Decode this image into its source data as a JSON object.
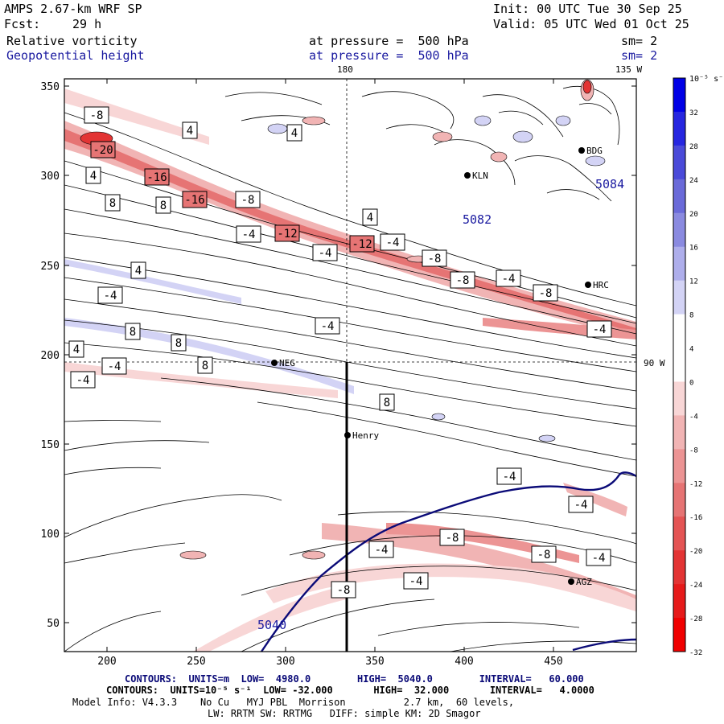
{
  "header": {
    "model": "AMPS 2.67-km WRF SP",
    "init": "Init: 00 UTC Tue 30 Sep 25",
    "fcst_label": "Fcst:",
    "fcst_value": "29 h",
    "valid": "Valid: 05 UTC Wed 01 Oct 25",
    "field1_name": "Relative vorticity",
    "field1_level": "at pressure =  500 hPa",
    "field1_sm": "sm= 2",
    "field2_name": "Geopotential height",
    "field2_level": "at pressure =  500 hPa",
    "field2_sm": "sm= 2",
    "lon_180": "180",
    "lon_135w": "135 W",
    "lon_90w": "90 W"
  },
  "axes": {
    "x_ticks": [
      "200",
      "250",
      "300",
      "350",
      "400",
      "450"
    ],
    "y_ticks": [
      "350",
      "300",
      "250",
      "200",
      "150",
      "100",
      "50"
    ]
  },
  "colorbar": {
    "unit": "10⁻⁵ s⁻¹",
    "labels": [
      "32",
      "28",
      "24",
      "20",
      "16",
      "12",
      "8",
      "4",
      "0",
      "-4",
      "-8",
      "-12",
      "-16",
      "-20",
      "-24",
      "-28",
      "-32"
    ],
    "colors": [
      "#0000e6",
      "#2626e0",
      "#4a4ad9",
      "#6a6ad9",
      "#8a8ae0",
      "#aeaeeb",
      "#d3d3f5",
      "#ffffff",
      "#ffffff",
      "#f8d6d6",
      "#f1b4b4",
      "#ec9494",
      "#e67474",
      "#e45454",
      "#e33434",
      "#e61a1a",
      "#f00000"
    ]
  },
  "stations": [
    {
      "name": "NEG"
    },
    {
      "name": "Henry"
    },
    {
      "name": "KLN"
    },
    {
      "name": "BDG"
    },
    {
      "name": "HRC"
    },
    {
      "name": "AGZ"
    }
  ],
  "height_labels": [
    "5082",
    "5040",
    "5084"
  ],
  "contour_labels": [
    "-8",
    "-20",
    "-16",
    "-16",
    "-12",
    "-12",
    "-8",
    "-8",
    "-8",
    "-8",
    "-4",
    "-4",
    "-4",
    "-4",
    "-4",
    "-4",
    "-4",
    "-4",
    "-4",
    "-4",
    "-4",
    "-8",
    "-8",
    "-8",
    "-4",
    "-4",
    "-4",
    "4",
    "4",
    "4",
    "4",
    "4",
    "4",
    "8",
    "8",
    "8",
    "8",
    "8",
    "8"
  ],
  "footer": {
    "line1": "CONTOURS:  UNITS=m  LOW=  4980.0        HIGH=  5040.0        INTERVAL=   60.000",
    "line2": "CONTOURS:  UNITS=10⁻⁵ s⁻¹  LOW= -32.000       HIGH=  32.000       INTERVAL=   4.0000",
    "line3": "Model Info: V4.3.3    No Cu   MYJ PBL  Morrison          2.7 km,  60 levels,",
    "line4": "LW: RRTM SW: RRTMG   DIFF: simple KM: 2D Smagor"
  }
}
